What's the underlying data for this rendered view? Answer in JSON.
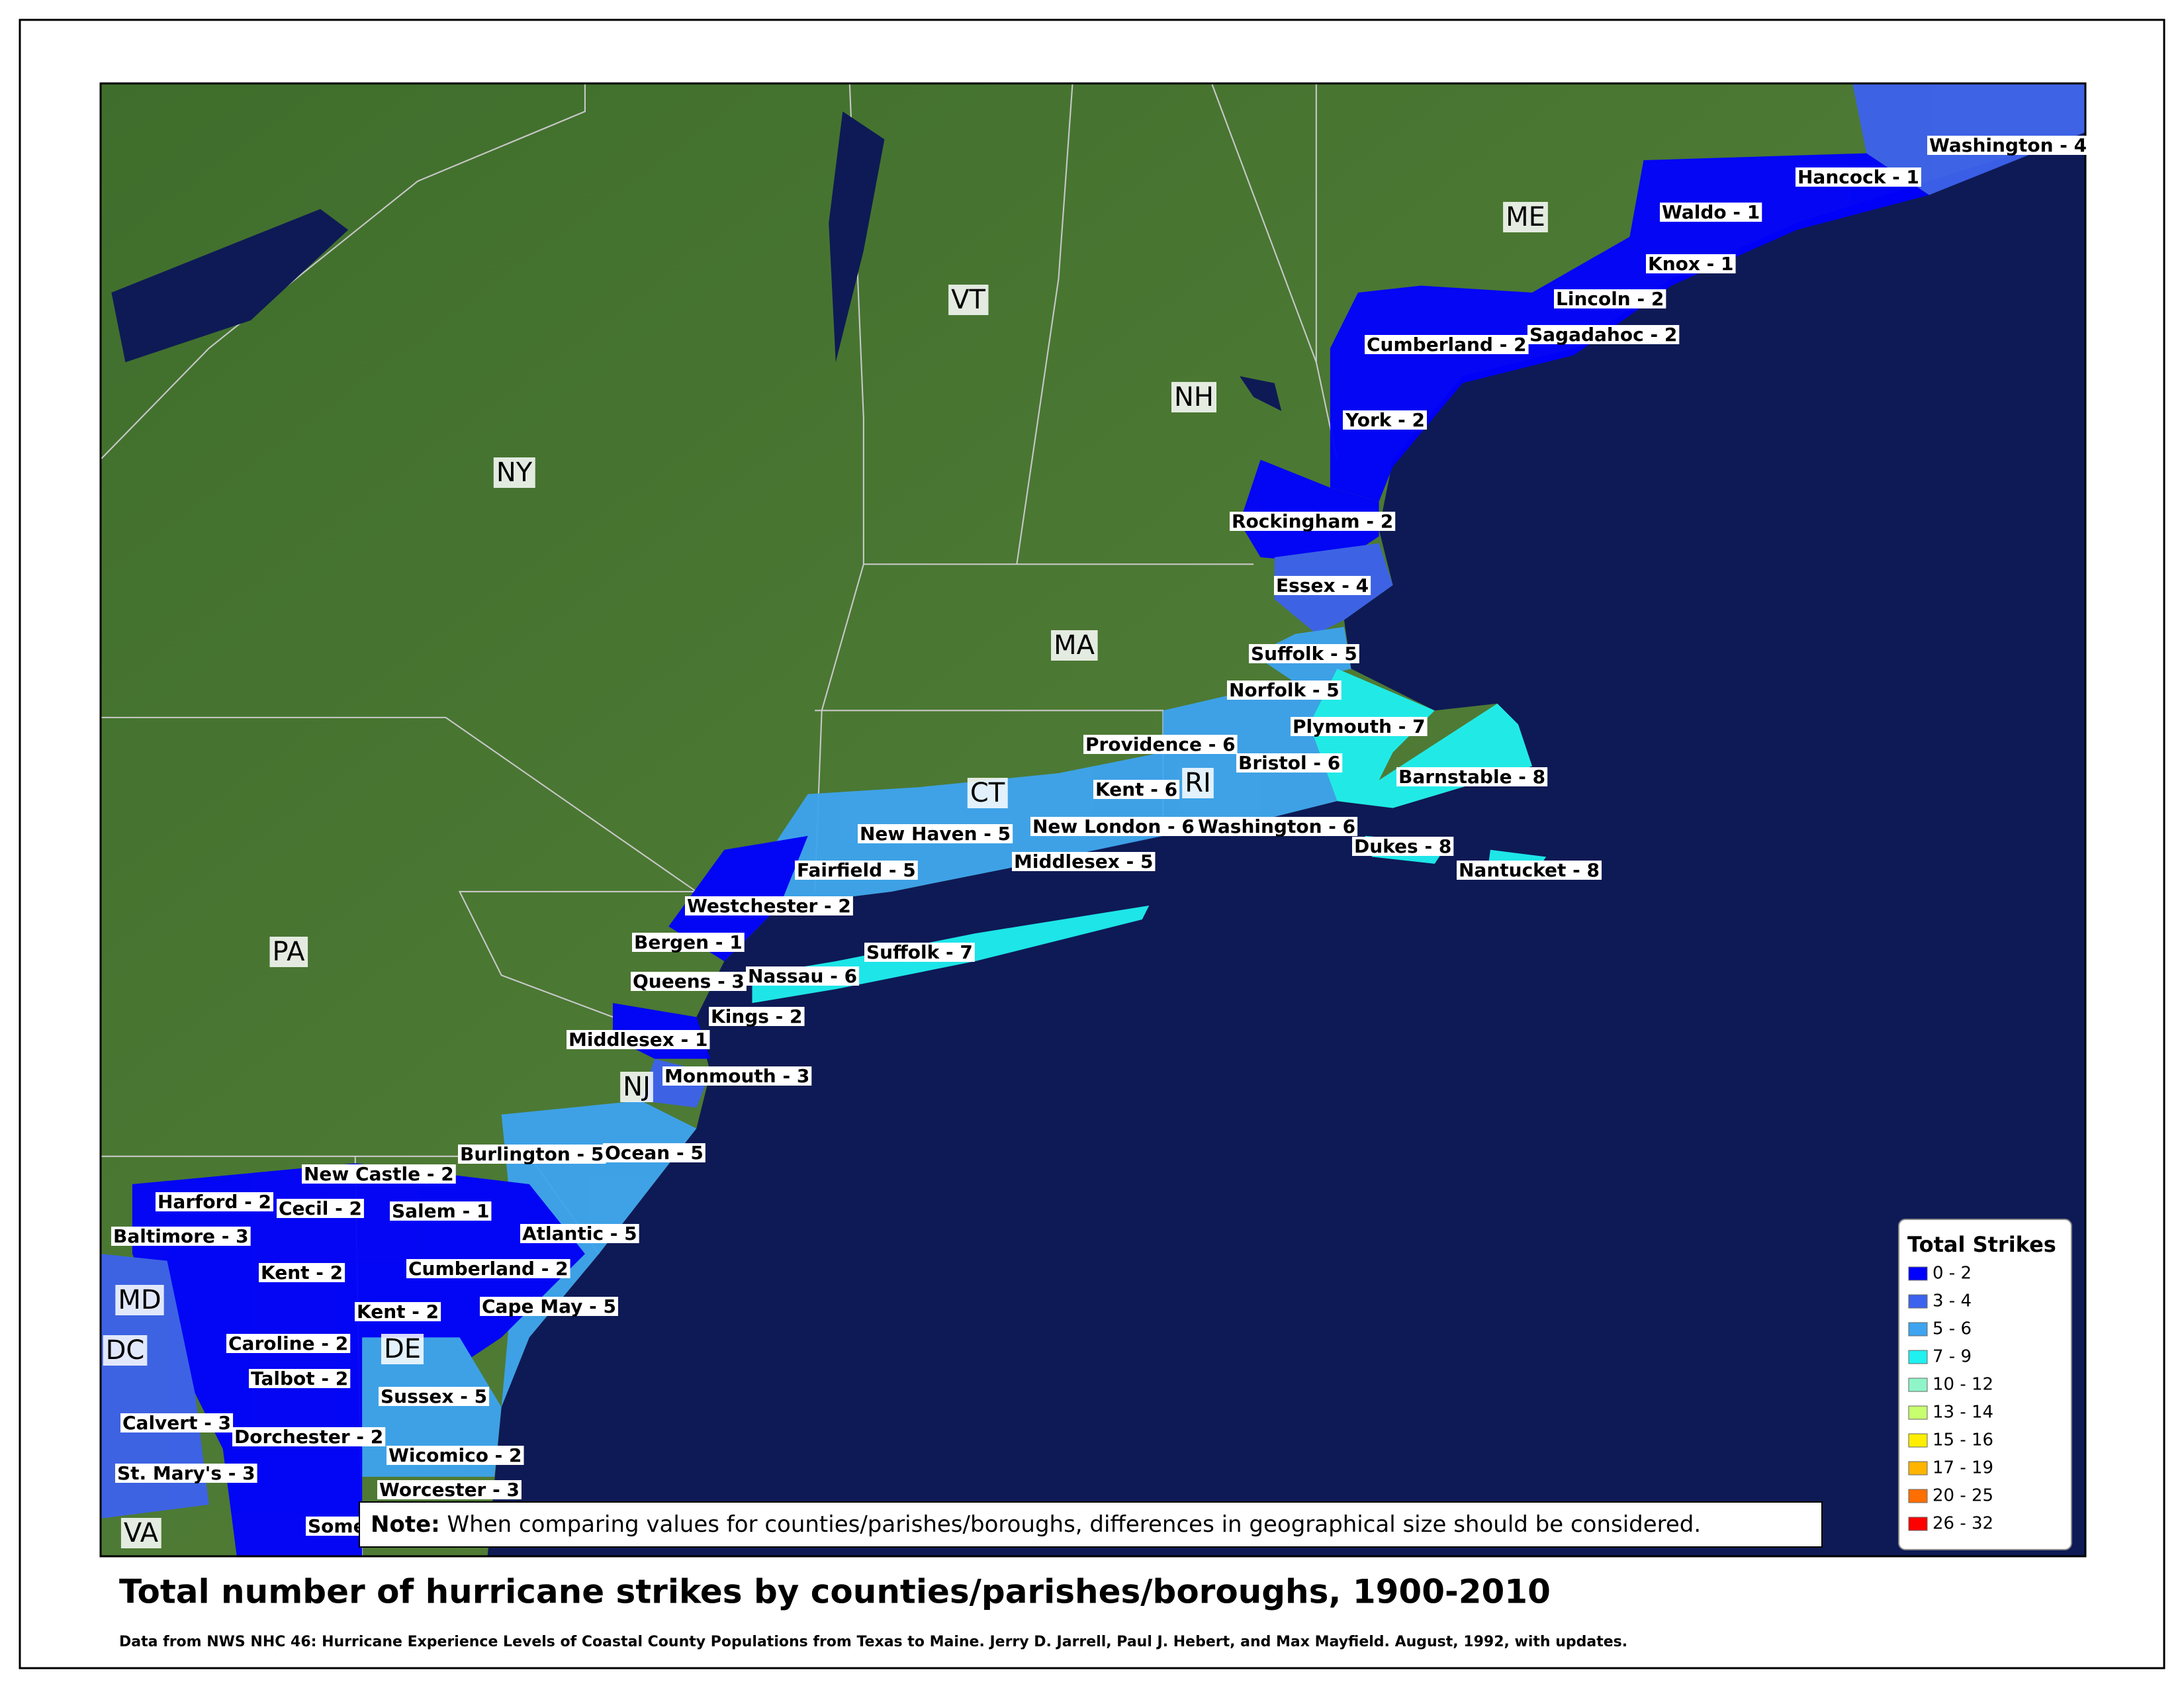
{
  "title": "Total number of hurricane strikes by counties/parishes/boroughs, 1900-2010",
  "source": "Data from NWS NHC 46: Hurricane Experience Levels of Coastal County Populations from Texas to Maine. Jerry D. Jarrell, Paul J. Hebert, and Max Mayfield. August, 1992, with updates.",
  "note": {
    "label": "Note:",
    "text": "When comparing values for counties/parishes/boroughs, differences in geographical size should be considered."
  },
  "legend": {
    "title": "Total Strikes",
    "items": [
      {
        "label": "0 - 2",
        "color": "#0000ff"
      },
      {
        "label": "3 - 4",
        "color": "#3d62ee"
      },
      {
        "label": "5 - 6",
        "color": "#3ea4f0"
      },
      {
        "label": "7 - 9",
        "color": "#1ff0f0"
      },
      {
        "label": "10 - 12",
        "color": "#8ff5c8"
      },
      {
        "label": "13 - 14",
        "color": "#c8ff6e"
      },
      {
        "label": "15 - 16",
        "color": "#ffee00"
      },
      {
        "label": "17 - 19",
        "color": "#ffb400"
      },
      {
        "label": "20 - 25",
        "color": "#ff6e00"
      },
      {
        "label": "26 - 32",
        "color": "#ff0000"
      }
    ]
  },
  "states": [
    "ME",
    "VT",
    "NH",
    "NY",
    "MA",
    "CT",
    "RI",
    "PA",
    "NJ",
    "MD",
    "DE",
    "DC",
    "VA"
  ],
  "counties": [
    "Washington - 4",
    "Hancock - 1",
    "Waldo - 1",
    "Knox - 1",
    "Lincoln - 2",
    "Sagadahoc - 2",
    "Cumberland - 2",
    "York - 2",
    "Rockingham - 2",
    "Essex - 4",
    "Suffolk - 5",
    "Norfolk - 5",
    "Plymouth - 7",
    "Providence - 6",
    "Bristol - 6",
    "Barnstable - 8",
    "Kent - 6",
    "New London - 6",
    "Washington - 6",
    "Dukes - 8",
    "New Haven - 5",
    "Middlesex - 5",
    "Nantucket - 8",
    "Fairfield - 5",
    "Westchester - 2",
    "Bergen - 1",
    "Suffolk - 7",
    "Nassau - 6",
    "Queens - 3",
    "Kings - 2",
    "Middlesex - 1",
    "Monmouth - 3",
    "Burlington - 5",
    "Ocean - 5",
    "New Castle - 2",
    "Harford - 2",
    "Cecil - 2",
    "Salem - 1",
    "Baltimore - 3",
    "Atlantic - 5",
    "Kent - 2",
    "Cumberland - 2",
    "Cape May - 5",
    "Kent - 2",
    "Caroline - 2",
    "Talbot - 2",
    "Sussex - 5",
    "Calvert - 3",
    "Dorchester - 2",
    "Wicomico - 2",
    "St. Mary's - 3",
    "Worcester - 3",
    "Some"
  ]
}
